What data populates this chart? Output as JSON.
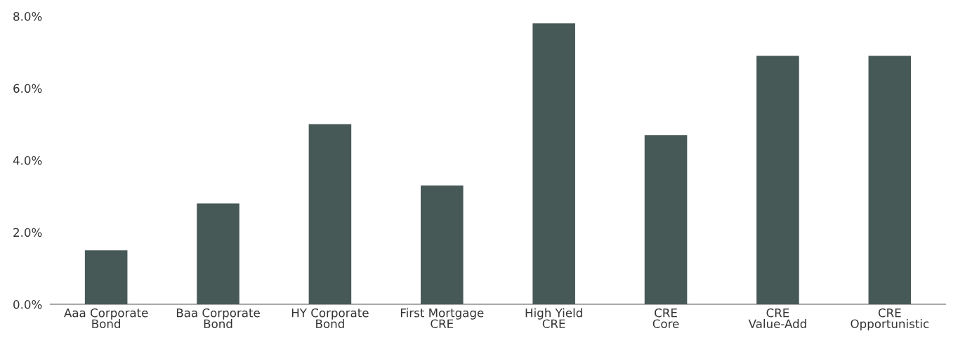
{
  "chart_data": {
    "type": "bar",
    "categories": [
      "Aaa Corporate\nBond",
      "Baa Corporate\nBond",
      "HY Corporate\nBond",
      "First Mortgage\nCRE",
      "High Yield\nCRE",
      "CRE\nCore",
      "CRE\nValue-Add",
      "CRE\nOpportunistic"
    ],
    "values": [
      1.5,
      2.8,
      5.0,
      3.3,
      7.8,
      4.7,
      6.9,
      6.9
    ],
    "color": "#475957",
    "ylim": [
      0,
      8
    ],
    "yticks": [
      {
        "value": 0,
        "label": "0.0%"
      },
      {
        "value": 2,
        "label": "2.0%"
      },
      {
        "value": 4,
        "label": "4.0%"
      },
      {
        "value": 6,
        "label": "6.0%"
      },
      {
        "value": 8,
        "label": "8.0%"
      }
    ],
    "grid": false
  }
}
